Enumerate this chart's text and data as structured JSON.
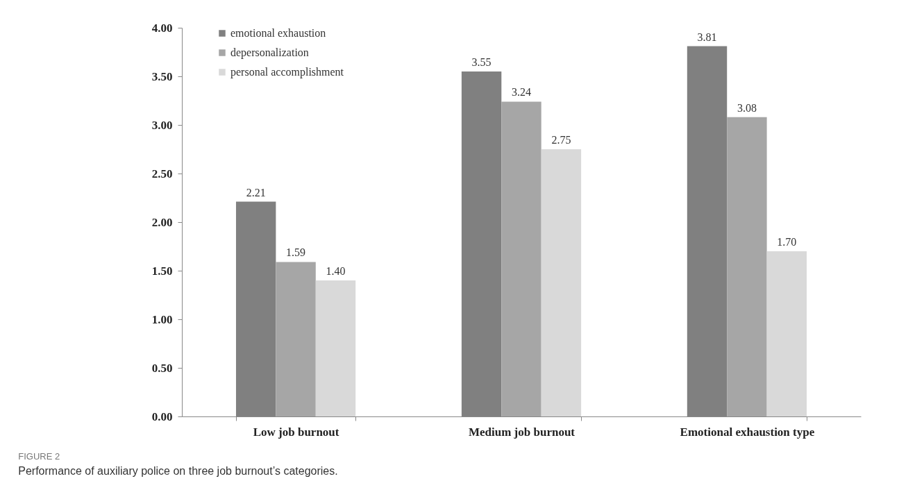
{
  "chart_data": {
    "type": "bar",
    "title": "FIGURE 2",
    "subtitle": "Performance of auxiliary police on three job burnout’s categories.",
    "categories": [
      "Low job burnout",
      "Medium job burnout",
      "Emotional exhaustion type"
    ],
    "series": [
      {
        "name": "emotional exhaustion",
        "color": "#808080",
        "values": [
          2.21,
          3.55,
          3.81
        ],
        "value_labels": [
          "2.21",
          "3.55",
          "3.81"
        ]
      },
      {
        "name": "depersonalization",
        "color": "#a6a6a6",
        "values": [
          1.59,
          3.24,
          3.08
        ],
        "value_labels": [
          "1.59",
          "3.24",
          "3.08"
        ]
      },
      {
        "name": "personal accomplishment",
        "color": "#d9d9d9",
        "values": [
          1.4,
          2.75,
          1.7
        ],
        "value_labels": [
          "1.40",
          "2.75",
          "1.70"
        ]
      }
    ],
    "ylim": [
      0,
      4
    ],
    "yticks": [
      {
        "value": 0,
        "label": "0.00"
      },
      {
        "value": 0.5,
        "label": "0.50"
      },
      {
        "value": 1,
        "label": "1.00"
      },
      {
        "value": 1.5,
        "label": "1.50"
      },
      {
        "value": 2,
        "label": "2.00"
      },
      {
        "value": 2.5,
        "label": "2.50"
      },
      {
        "value": 3,
        "label": "3.00"
      },
      {
        "value": 3.5,
        "label": "3.50"
      },
      {
        "value": 4,
        "label": "4.00"
      }
    ],
    "grid": false,
    "legend": "top left"
  }
}
